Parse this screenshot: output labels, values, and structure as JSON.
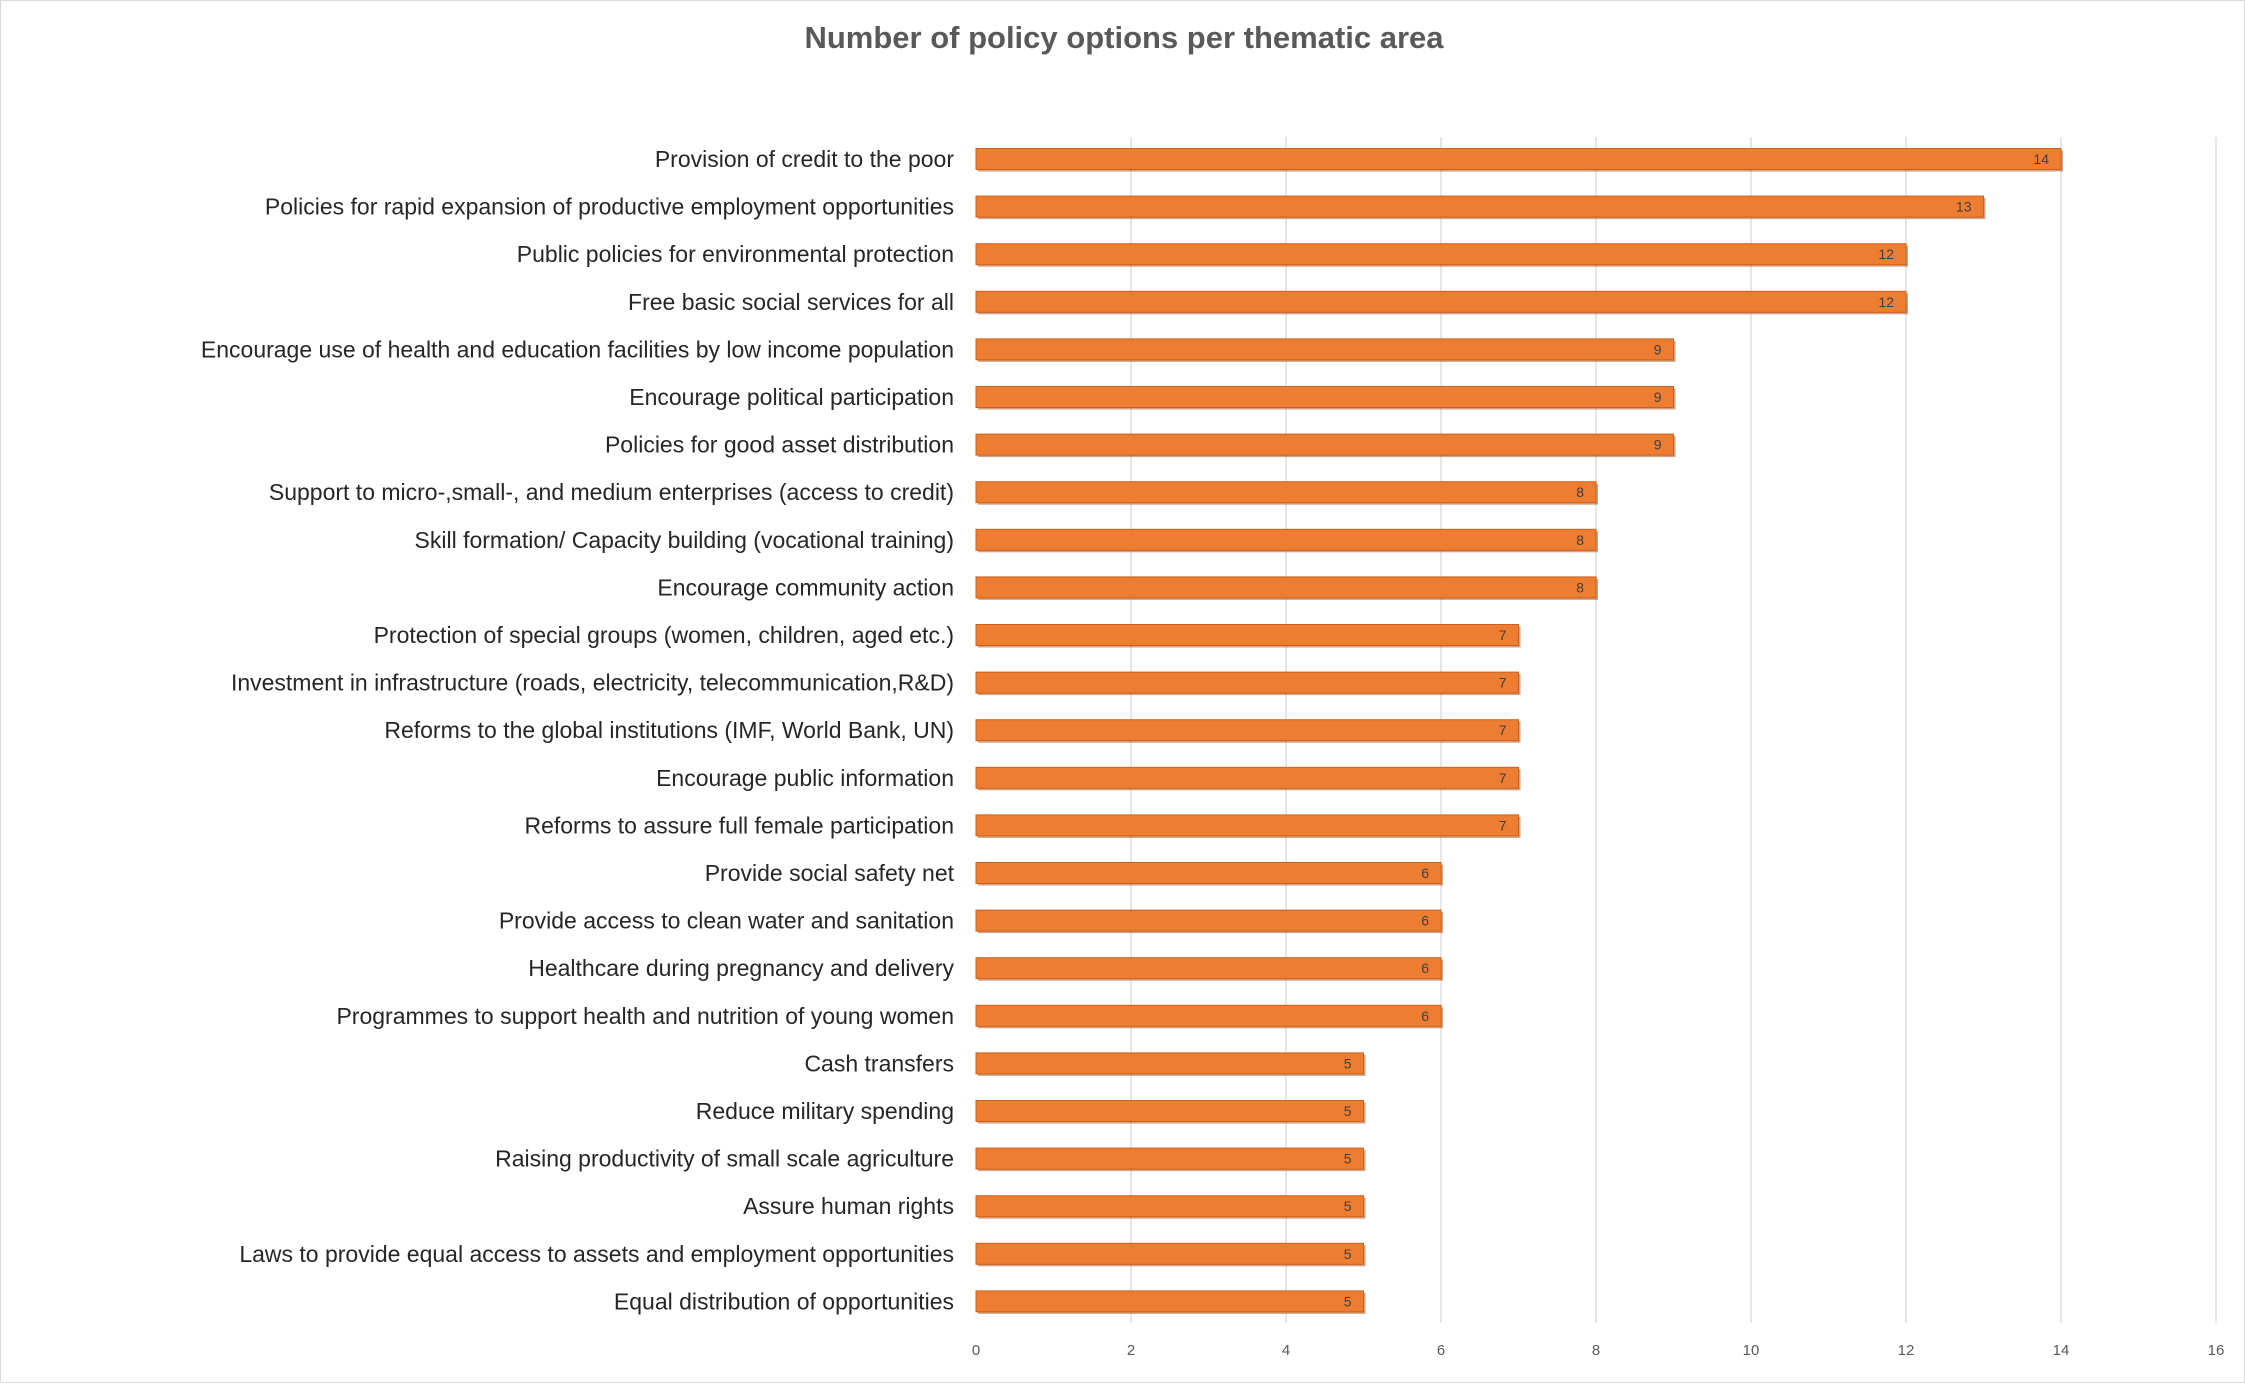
{
  "chart_data": {
    "type": "bar",
    "orientation": "horizontal",
    "title": "Number of policy options per thematic area",
    "xlabel": "",
    "ylabel": "",
    "xlim": [
      0,
      16
    ],
    "x_ticks": [
      "0",
      "2",
      "4",
      "6",
      "8",
      "10",
      "12",
      "14",
      "16"
    ],
    "grid": true,
    "legend": "none",
    "bar_color": "#ED7D31",
    "categories": [
      "Provision of credit to the poor",
      "Policies for rapid expansion of productive employment opportunities",
      "Public policies for environmental protection",
      "Free basic social services for all",
      "Encourage use of health and education facilities by low income population",
      "Encourage political participation",
      "Policies for good asset distribution",
      "Support to micro-,small-, and medium enterprises (access to credit)",
      "Skill formation/ Capacity building (vocational training)",
      "Encourage community action",
      "Protection of special groups (women, children, aged etc.)",
      "Investment in infrastructure (roads, electricity, telecommunication,R&D)",
      "Reforms to the global institutions (IMF, World Bank, UN)",
      "Encourage public information",
      "Reforms to assure full female participation",
      "Provide social safety net",
      "Provide access to clean water and sanitation",
      "Healthcare during pregnancy and delivery",
      "Programmes to support health and nutrition of young women",
      "Cash transfers",
      "Reduce military spending",
      "Raising productivity of small scale agriculture",
      "Assure human rights",
      "Laws to provide equal access to assets and employment opportunities",
      "Equal distribution of opportunities"
    ],
    "values": [
      14,
      13,
      12,
      12,
      9,
      9,
      9,
      8,
      8,
      8,
      7,
      7,
      7,
      7,
      7,
      6,
      6,
      6,
      6,
      5,
      5,
      5,
      5,
      5,
      5
    ]
  }
}
